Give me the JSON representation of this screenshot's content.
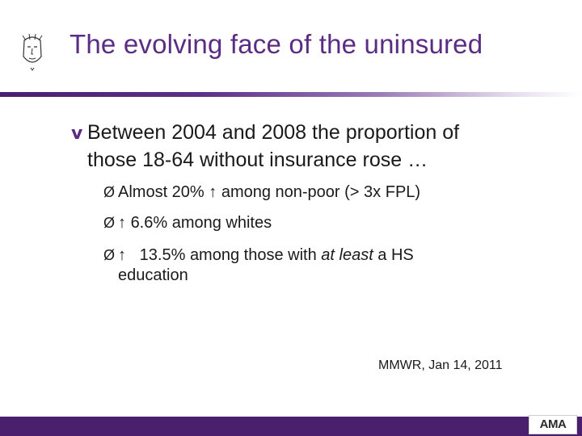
{
  "slide": {
    "title": "The evolving face of the uninsured",
    "main_bullet_mark": "v",
    "main_bullet_line1": "Between 2004 and 2008 the proportion of",
    "main_bullet_line2": "those 18-64 without insurance rose …",
    "sub_bullets": [
      {
        "marker": "Ø",
        "arrow": "",
        "text": "Almost 20% ↑ among non-poor (> 3x FPL)"
      },
      {
        "marker": "Ø",
        "arrow": "↑",
        "text": "6.6% among whites"
      },
      {
        "marker": "Ø",
        "arrow": "↑",
        "text_before": "13.5% among those with ",
        "text_italic": "at least",
        "text_after": " a HS",
        "continuation": "education"
      }
    ],
    "citation": "MMWR, Jan 14, 2011",
    "logo_text": "AMA"
  },
  "colors": {
    "title": "#5b2c83",
    "accent_bar": "#4a1f6e",
    "text": "#1a1a1a"
  }
}
